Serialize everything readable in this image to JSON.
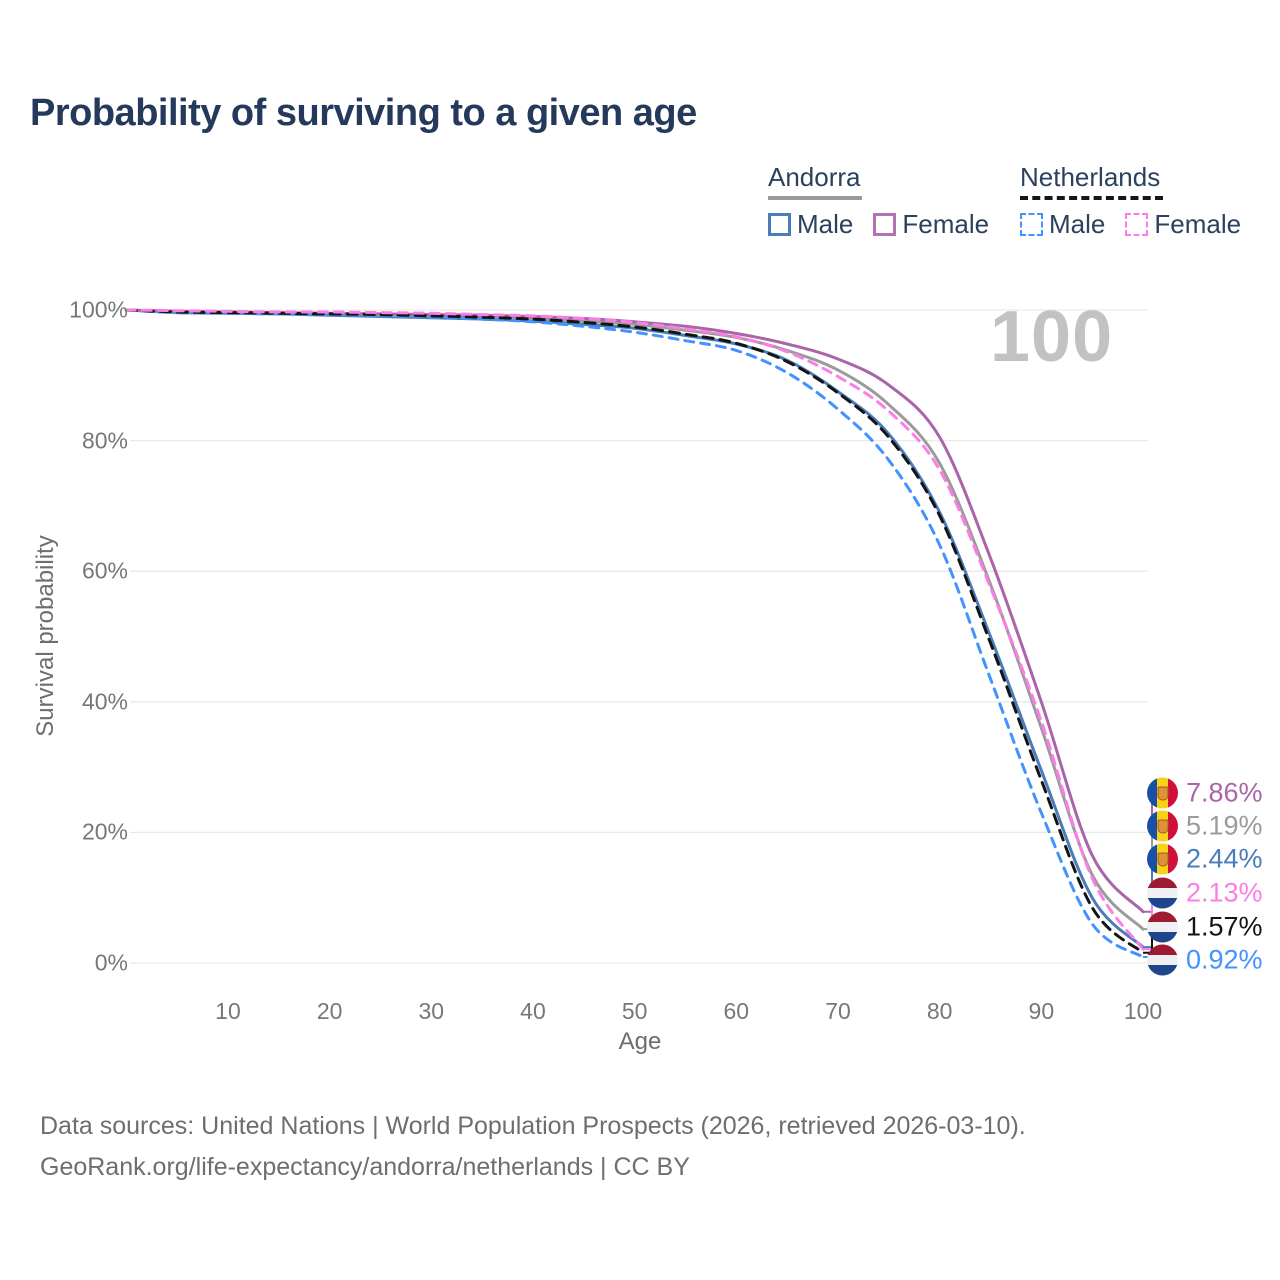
{
  "title": "Probability of surviving to a given age",
  "legend": {
    "groups": [
      {
        "country": "Andorra",
        "line_style": "solid",
        "line_color": "#9b9b9b",
        "items": [
          {
            "label": "Male",
            "color": "#4a7cba",
            "dashed": false
          },
          {
            "label": "Female",
            "color": "#b273b2",
            "dashed": false
          }
        ]
      },
      {
        "country": "Netherlands",
        "line_style": "dashed",
        "line_color": "#161616",
        "items": [
          {
            "label": "Male",
            "color": "#4292ff",
            "dashed": true
          },
          {
            "label": "Female",
            "color": "#fc7de6",
            "dashed": true
          }
        ]
      }
    ]
  },
  "chart_data": {
    "type": "line",
    "title": "Probability of surviving to a given age",
    "xlabel": "Age",
    "ylabel": "Survival probability",
    "watermark": "100",
    "xlim": [
      0,
      100
    ],
    "ylim": [
      0,
      100
    ],
    "grid": "horizontal",
    "x_ticks": [
      10,
      20,
      30,
      40,
      50,
      60,
      70,
      80,
      90,
      100
    ],
    "y_ticks": [
      "0%",
      "20%",
      "40%",
      "60%",
      "80%",
      "100%"
    ],
    "x": [
      0,
      5,
      10,
      15,
      20,
      25,
      30,
      35,
      40,
      45,
      50,
      55,
      60,
      65,
      70,
      75,
      80,
      85,
      90,
      95,
      100
    ],
    "series": [
      {
        "id": "andorra-male",
        "country": "Andorra",
        "sex": "Male",
        "color": "#4a7cba",
        "dash": null,
        "end_label": "2.44%",
        "end_value": 2.44,
        "values": [
          100,
          99.6,
          99.5,
          99.4,
          99.2,
          99.0,
          98.8,
          98.6,
          98.3,
          97.8,
          97.2,
          96.1,
          94.8,
          92.3,
          87.5,
          81,
          69,
          50,
          29.5,
          10,
          2.44
        ]
      },
      {
        "id": "andorra-average",
        "country": "Andorra",
        "sex": "Both",
        "color": "#9b9b9b",
        "dash": null,
        "end_label": "5.19%",
        "end_value": 5.19,
        "values": [
          100,
          99.7,
          99.6,
          99.5,
          99.4,
          99.2,
          99.1,
          98.9,
          98.7,
          98.3,
          97.8,
          96.9,
          95.8,
          93.8,
          90.8,
          85.5,
          76.5,
          58,
          36,
          13.5,
          5.19
        ]
      },
      {
        "id": "andorra-female",
        "country": "Andorra",
        "sex": "Female",
        "color": "#aa64aa",
        "dash": null,
        "end_label": "7.86%",
        "end_value": 7.86,
        "values": [
          100,
          99.8,
          99.7,
          99.6,
          99.5,
          99.4,
          99.3,
          99.2,
          99.0,
          98.7,
          98.2,
          97.5,
          96.4,
          94.8,
          92.5,
          88.5,
          80.5,
          62,
          40,
          16.5,
          7.86
        ]
      },
      {
        "id": "netherlands-male",
        "country": "Netherlands",
        "sex": "Male",
        "color": "#4292ff",
        "dash": "9 7",
        "end_label": "0.92%",
        "end_value": 0.92,
        "values": [
          100,
          99.6,
          99.5,
          99.4,
          99.3,
          99.1,
          98.9,
          98.6,
          98.2,
          97.5,
          96.6,
          95.3,
          93.8,
          90.4,
          84.8,
          77,
          64,
          43.5,
          23,
          6,
          0.92
        ]
      },
      {
        "id": "netherlands-average",
        "country": "Netherlands",
        "sex": "Both",
        "color": "#141414",
        "dash": "10 7",
        "end_label": "1.57%",
        "end_value": 1.57,
        "values": [
          100,
          99.7,
          99.6,
          99.5,
          99.4,
          99.3,
          99.1,
          98.9,
          98.6,
          98.1,
          97.4,
          96.3,
          94.9,
          92.1,
          87.3,
          80.5,
          68.5,
          49,
          28,
          8.5,
          1.57
        ]
      },
      {
        "id": "netherlands-female",
        "country": "Netherlands",
        "sex": "Female",
        "color": "#fc7de6",
        "dash": "9 7",
        "end_label": "2.13%",
        "end_value": 2.13,
        "values": [
          100,
          99.9,
          99.8,
          99.7,
          99.7,
          99.6,
          99.5,
          99.3,
          99.1,
          98.7,
          98.1,
          97.1,
          95.9,
          93.6,
          89.8,
          84.5,
          75.5,
          57.5,
          37,
          13,
          2.13
        ]
      }
    ]
  },
  "footer": {
    "line1": "Data sources: United Nations | World Population Prospects (2026, retrieved 2026-03-10).",
    "line2": "GeoRank.org/life-expectancy/andorra/netherlands | CC BY"
  }
}
